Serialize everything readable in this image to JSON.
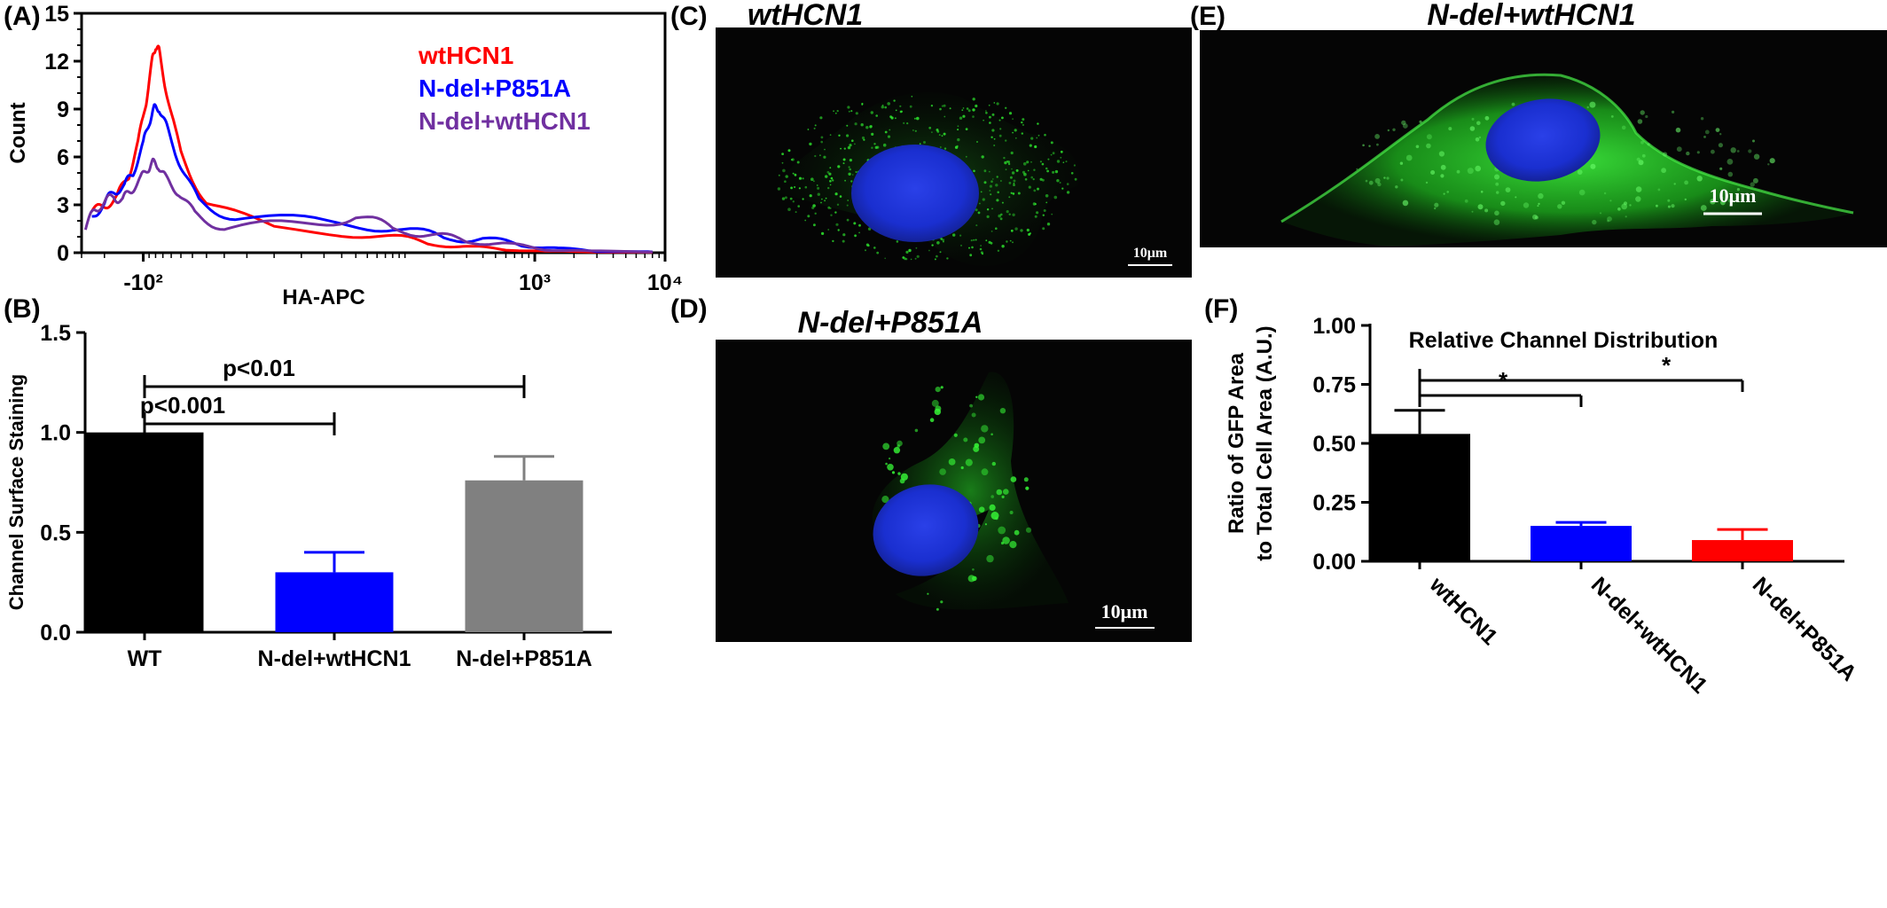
{
  "colors": {
    "wt": "#000000",
    "ndel_wt": "#0000ff",
    "ndel_p851a": "#808080",
    "red": "#ff0000",
    "purple": "#7030a0",
    "gfp": "#22dd22",
    "nucleus": "#1a2fd0"
  },
  "panels": {
    "A": "(A)",
    "B": "(B)",
    "C": "(C)",
    "D": "(D)",
    "E": "(E)",
    "F": "(F)"
  },
  "images": {
    "C": {
      "title": "wtHCN1",
      "scale_label": "10μm"
    },
    "D": {
      "title": "N-del+P851A",
      "scale_label": "10μm"
    },
    "E": {
      "title": "N-del+wtHCN1",
      "scale_label": "10μm"
    }
  },
  "chart_data": [
    {
      "panel": "A",
      "type": "line",
      "xlabel": "HA-APC",
      "ylabel": "Count",
      "x_scale": "biexponential",
      "x_ticks": [
        "-10²",
        "10³",
        "10⁴"
      ],
      "ylim": [
        0,
        15
      ],
      "y_ticks": [
        "0",
        "3",
        "6",
        "9",
        "12",
        "15"
      ],
      "legend": [
        "wtHCN1",
        "N-del+P851A",
        "N-del+wtHCN1"
      ],
      "legend_position": "top-right",
      "series": [
        {
          "name": "wtHCN1",
          "color": "#ff0000",
          "points": [
            [
              -250,
              2.6
            ],
            [
              -200,
              2.9
            ],
            [
              -160,
              3.5
            ],
            [
              -130,
              4.8
            ],
            [
              -110,
              6.8
            ],
            [
              -95,
              9.5
            ],
            [
              -85,
              12.0
            ],
            [
              -80,
              13.0
            ],
            [
              -75,
              12.6
            ],
            [
              -65,
              10.0
            ],
            [
              -50,
              6.2
            ],
            [
              -30,
              3.2
            ],
            [
              0,
              1.6
            ],
            [
              60,
              1.0
            ],
            [
              150,
              0.6
            ],
            [
              300,
              0.35
            ],
            [
              600,
              0.2
            ],
            [
              1200,
              0.08
            ],
            [
              3000,
              0.05
            ],
            [
              8000,
              0.02
            ]
          ]
        },
        {
          "name": "N-del+P851A",
          "color": "#0000ff",
          "points": [
            [
              -250,
              2.2
            ],
            [
              -200,
              3.1
            ],
            [
              -170,
              3.8
            ],
            [
              -140,
              4.2
            ],
            [
              -120,
              5.0
            ],
            [
              -100,
              6.8
            ],
            [
              -90,
              8.2
            ],
            [
              -82,
              9.0
            ],
            [
              -75,
              9.1
            ],
            [
              -65,
              7.8
            ],
            [
              -50,
              5.5
            ],
            [
              -35,
              3.2
            ],
            [
              -15,
              2.2
            ],
            [
              20,
              2.0
            ],
            [
              80,
              1.4
            ],
            [
              200,
              1.0
            ],
            [
              400,
              0.8
            ],
            [
              800,
              0.5
            ],
            [
              1500,
              0.25
            ],
            [
              3000,
              0.1
            ],
            [
              8000,
              0.05
            ]
          ]
        },
        {
          "name": "N-del+wtHCN1",
          "color": "#7030a0",
          "points": [
            [
              -280,
              1.6
            ],
            [
              -240,
              2.6
            ],
            [
              -200,
              3.2
            ],
            [
              -170,
              3.5
            ],
            [
              -145,
              3.3
            ],
            [
              -125,
              3.9
            ],
            [
              -105,
              4.6
            ],
            [
              -92,
              5.3
            ],
            [
              -84,
              5.6
            ],
            [
              -76,
              5.5
            ],
            [
              -66,
              4.6
            ],
            [
              -52,
              3.8
            ],
            [
              -38,
              2.4
            ],
            [
              -20,
              1.6
            ],
            [
              10,
              1.8
            ],
            [
              40,
              2.2
            ],
            [
              80,
              1.6
            ],
            [
              160,
              1.0
            ],
            [
              300,
              0.8
            ],
            [
              600,
              0.5
            ],
            [
              1200,
              0.2
            ],
            [
              2500,
              0.1
            ],
            [
              8000,
              0.05
            ]
          ]
        }
      ]
    },
    {
      "panel": "B",
      "type": "bar",
      "ylabel": "Channel Surface Staining",
      "ylim": [
        0,
        1.5
      ],
      "y_ticks": [
        "0.0",
        "0.5",
        "1.0",
        "1.5"
      ],
      "categories": [
        "WT",
        "N-del+wtHCN1",
        "N-del+P851A"
      ],
      "values": [
        1.0,
        0.3,
        0.76
      ],
      "errors": [
        0,
        0.1,
        0.12
      ],
      "colors": [
        "#000000",
        "#0000ff",
        "#808080"
      ],
      "annotations": [
        {
          "text": "p<0.001",
          "from": 0,
          "to": 1
        },
        {
          "text": "p<0.01",
          "from": 0,
          "to": 2
        }
      ]
    },
    {
      "panel": "F",
      "type": "bar",
      "title": "Relative Channel Distribution",
      "ylabel_lines": [
        "Ratio of GFP Area",
        "to Total Cell Area (A.U.)"
      ],
      "ylim": [
        0,
        1.0
      ],
      "y_ticks": [
        "0.00",
        "0.25",
        "0.50",
        "0.75",
        "1.00"
      ],
      "categories": [
        "wtHCN1",
        "N-del+wtHCN1",
        "N-del+P851A"
      ],
      "values": [
        0.54,
        0.15,
        0.09
      ],
      "errors": [
        0.1,
        0.015,
        0.045
      ],
      "colors": [
        "#000000",
        "#0000ff",
        "#ff0000"
      ],
      "annotations": [
        {
          "text": "*",
          "from": 0,
          "to": 1
        },
        {
          "text": "*",
          "from": 0,
          "to": 2
        }
      ]
    }
  ]
}
